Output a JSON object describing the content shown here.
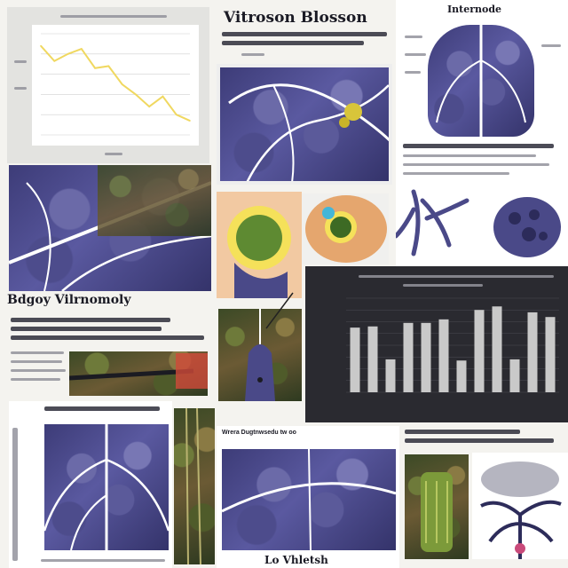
{
  "headings": {
    "top_center": "Vitroson Blosson",
    "top_right": "Internode",
    "left_mid": "Bdgoy Vilrnomoly",
    "bottom_center_caption": "Wrera Dugtnwsedu tw oo",
    "bottom_center_title": "Lo Vhletsh"
  },
  "line_chart": {
    "color": "#f0d860",
    "gridline_color": "#d0d0d0"
  },
  "chart_data": [
    {
      "type": "line",
      "title": "",
      "xlabel": "",
      "ylabel": "",
      "x": [
        1,
        2,
        3,
        4,
        5,
        6,
        7,
        8,
        9,
        10,
        11,
        12
      ],
      "series": [
        {
          "values": [
            8.8,
            7.3,
            8.0,
            8.5,
            6.6,
            6.8,
            5.0,
            4.0,
            2.8,
            3.8,
            2.0,
            1.4
          ]
        }
      ],
      "ylim": [
        0,
        10
      ],
      "grid": true
    },
    {
      "type": "bar",
      "title": "",
      "xlabel": "",
      "ylabel": "",
      "categories": [
        "1",
        "2",
        "3",
        "4",
        "5",
        "6",
        "7",
        "8",
        "9",
        "10",
        "11",
        "12"
      ],
      "values": [
        5.5,
        5.6,
        2.8,
        5.9,
        5.9,
        6.2,
        2.7,
        7.0,
        7.3,
        2.8,
        6.8,
        6.4
      ],
      "ylim": [
        0,
        8
      ],
      "grid": true
    }
  ],
  "colors": {
    "tissue": "#4a4988",
    "vein": "#ffffff",
    "bar_fill": "#c9c9c9",
    "dark_panel": "#2a2a30"
  },
  "icons": [
    "leaf-tissue-illustration",
    "cell-cross-section-illustration",
    "root-illustration"
  ]
}
